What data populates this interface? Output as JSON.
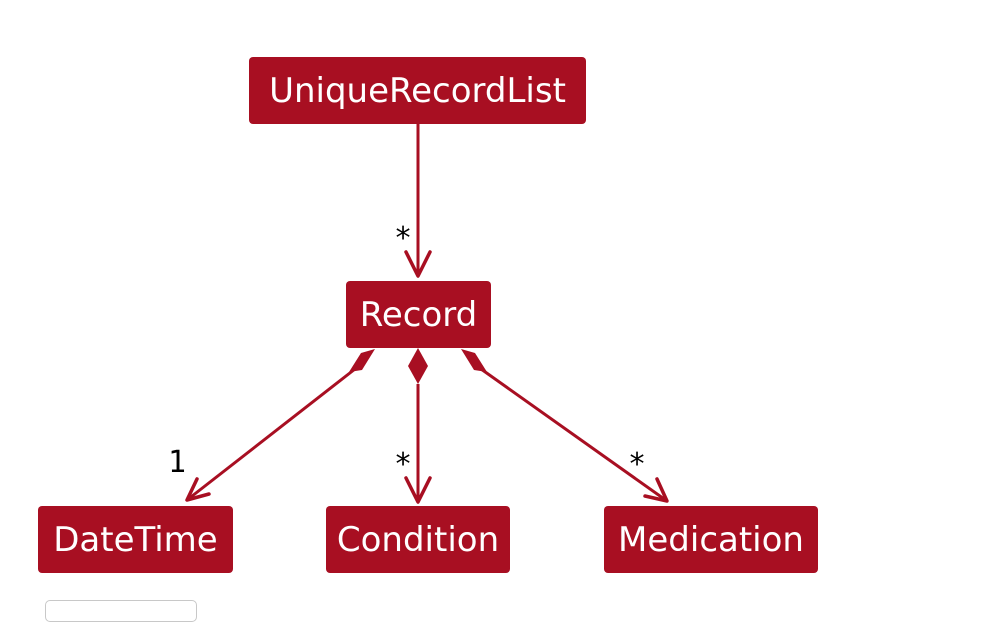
{
  "diagram": {
    "colors": {
      "node_fill": "#a80f22",
      "node_text": "#ffffff",
      "edge": "#a80f22",
      "multiplicity_text": "#000000"
    },
    "nodes": {
      "unique_record_list": "UniqueRecordList",
      "record": "Record",
      "datetime": "DateTime",
      "condition": "Condition",
      "medication": "Medication"
    },
    "edges": {
      "list_to_record": {
        "from": "UniqueRecordList",
        "to": "Record",
        "kind": "association",
        "multiplicity": "*"
      },
      "record_to_datetime": {
        "from": "Record",
        "to": "DateTime",
        "kind": "composition",
        "multiplicity": "1"
      },
      "record_to_condition": {
        "from": "Record",
        "to": "Condition",
        "kind": "composition",
        "multiplicity": "*"
      },
      "record_to_medication": {
        "from": "Record",
        "to": "Medication",
        "kind": "composition",
        "multiplicity": "*"
      }
    }
  }
}
